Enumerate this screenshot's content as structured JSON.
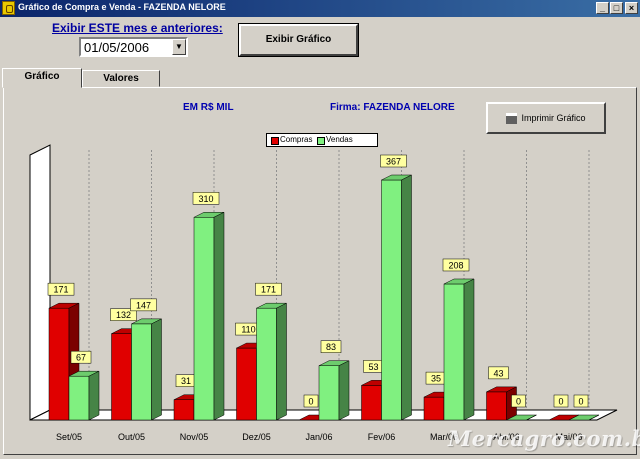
{
  "window": {
    "title": "Gráfico de Compra e Venda - FAZENDA NELORE",
    "min_glyph": "_",
    "max_glyph": "□",
    "close_glyph": "×"
  },
  "controls": {
    "period_label": "Exibir  ESTE  mes e anteriores:",
    "date_value": "01/05/2006",
    "show_button": "Exibir Gráfico"
  },
  "tabs": [
    {
      "label": "Gráfico",
      "active": true
    },
    {
      "label": "Valores",
      "active": false
    }
  ],
  "chart_header": {
    "units": "EM R$ MIL",
    "firm": "Firma: FAZENDA NELORE",
    "print_button": "Imprimir Gráfico"
  },
  "watermark": "Mercagro.com.br",
  "colors": {
    "compras": "#e00000",
    "vendas": "#80f080",
    "label_bg": "#ffffa0"
  },
  "chart_data": {
    "type": "bar",
    "style": "3d",
    "grid": true,
    "legend_position": "top",
    "categories": [
      "Set/05",
      "Out/05",
      "Nov/05",
      "Dez/05",
      "Jan/06",
      "Fev/06",
      "Mar/06",
      "Abr/06",
      "Mai/06"
    ],
    "series": [
      {
        "name": "Compras",
        "values": [
          171,
          132,
          31,
          110,
          0,
          53,
          35,
          43,
          0
        ]
      },
      {
        "name": "Vendas",
        "values": [
          67,
          147,
          310,
          171,
          83,
          367,
          208,
          0,
          0
        ]
      }
    ],
    "ylim": [
      0,
      367
    ]
  }
}
